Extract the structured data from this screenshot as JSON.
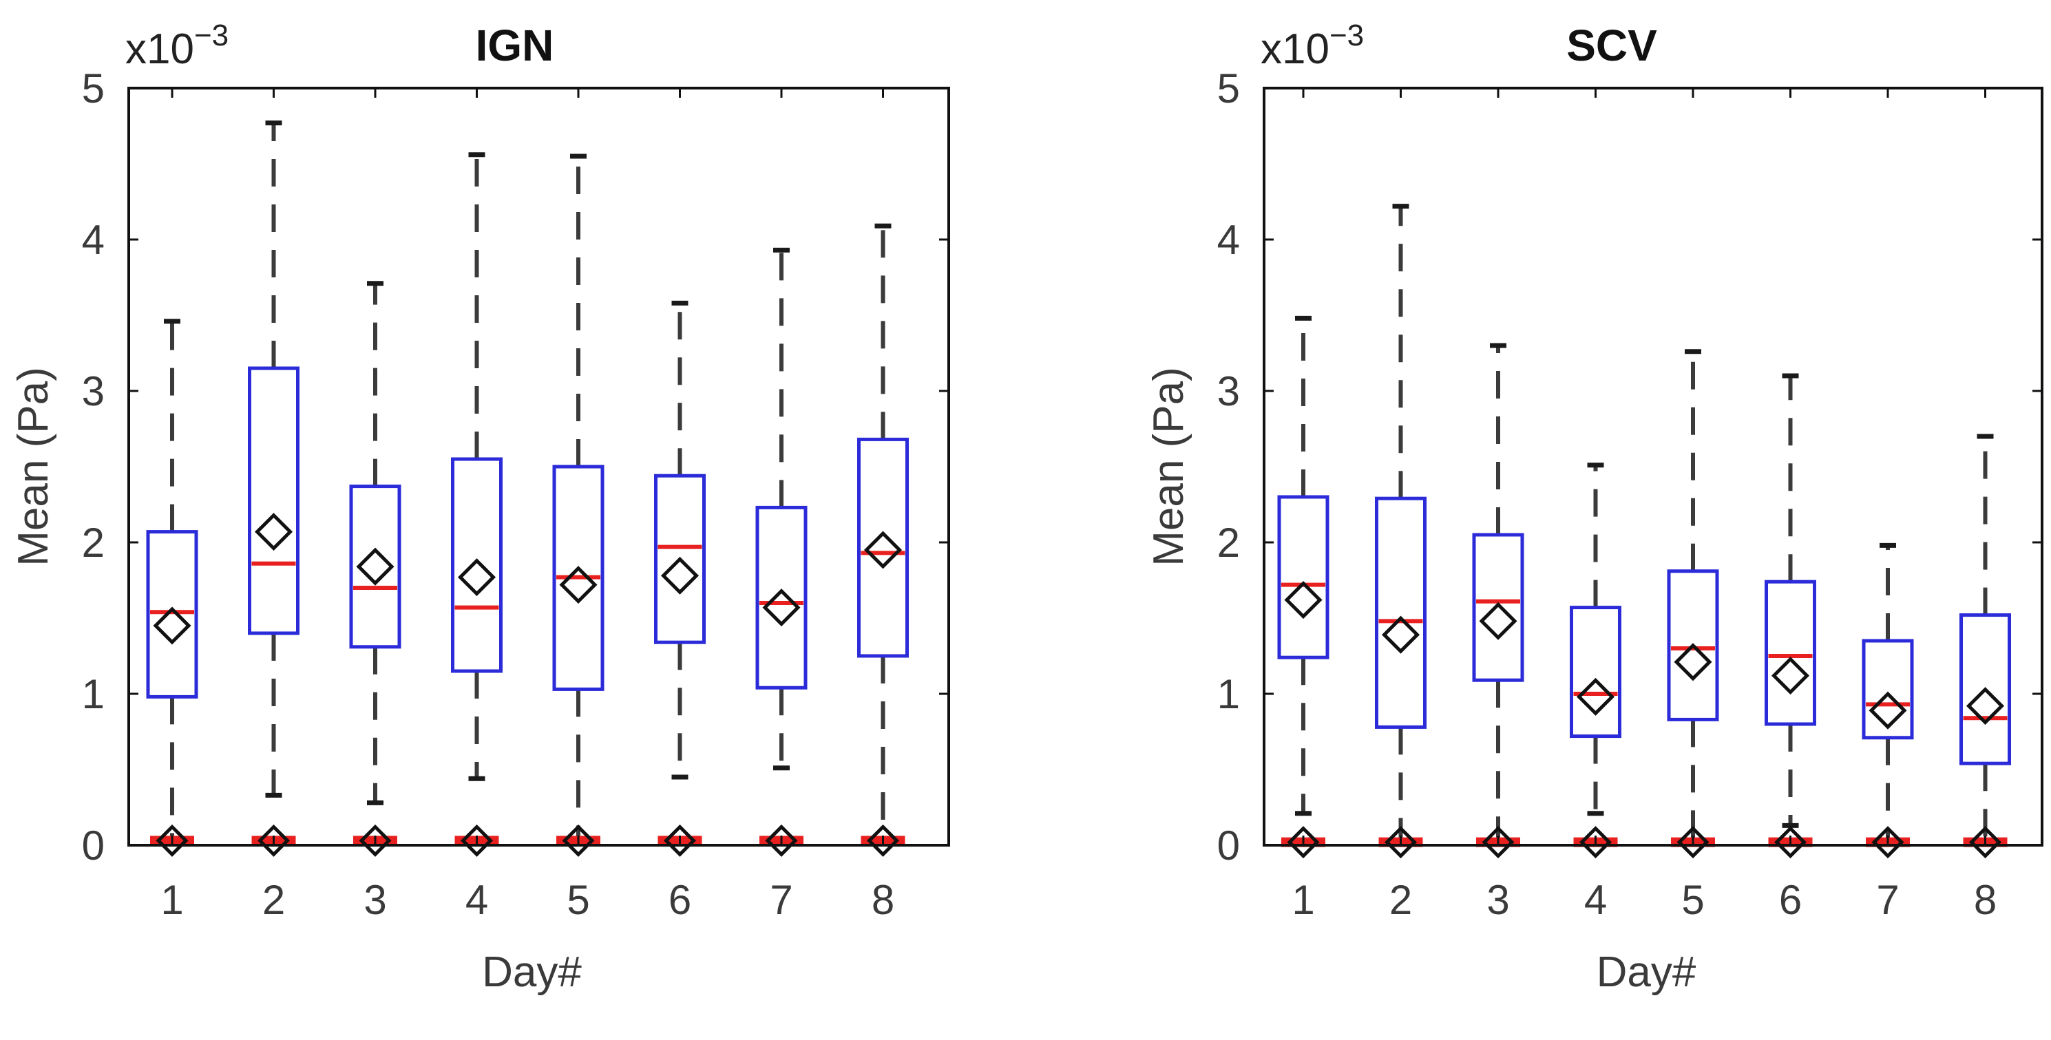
{
  "chart_data": [
    {
      "type": "boxplot",
      "title": "IGN",
      "xlabel": "Day#",
      "ylabel": "Mean (Pa)",
      "scale_label": "x10",
      "scale_exponent": "−3",
      "ylim": [
        0,
        5
      ],
      "yticks": [
        "0",
        "1",
        "2",
        "3",
        "4",
        "5"
      ],
      "categories": [
        "1",
        "2",
        "3",
        "4",
        "5",
        "6",
        "7",
        "8"
      ],
      "boxes": [
        {
          "whisker_low": 0.03,
          "q1": 0.98,
          "median": 1.54,
          "q3": 2.07,
          "whisker_high": 3.46,
          "mean": 1.45,
          "outlier": 0.03
        },
        {
          "whisker_low": 0.33,
          "q1": 1.4,
          "median": 1.86,
          "q3": 3.15,
          "whisker_high": 4.77,
          "mean": 2.07,
          "outlier": 0.03
        },
        {
          "whisker_low": 0.28,
          "q1": 1.31,
          "median": 1.7,
          "q3": 2.37,
          "whisker_high": 3.71,
          "mean": 1.84,
          "outlier": 0.03
        },
        {
          "whisker_low": 0.44,
          "q1": 1.15,
          "median": 1.57,
          "q3": 2.55,
          "whisker_high": 4.56,
          "mean": 1.77,
          "outlier": 0.03
        },
        {
          "whisker_low": 0.03,
          "q1": 1.03,
          "median": 1.77,
          "q3": 2.5,
          "whisker_high": 4.55,
          "mean": 1.72,
          "outlier": 0.03
        },
        {
          "whisker_low": 0.45,
          "q1": 1.34,
          "median": 1.97,
          "q3": 2.44,
          "whisker_high": 3.58,
          "mean": 1.78,
          "outlier": 0.03
        },
        {
          "whisker_low": 0.51,
          "q1": 1.04,
          "median": 1.6,
          "q3": 2.23,
          "whisker_high": 3.93,
          "mean": 1.57,
          "outlier": 0.03
        },
        {
          "whisker_low": 0.03,
          "q1": 1.25,
          "median": 1.93,
          "q3": 2.68,
          "whisker_high": 4.09,
          "mean": 1.95,
          "outlier": 0.03
        }
      ]
    },
    {
      "type": "boxplot",
      "title": "SCV",
      "xlabel": "Day#",
      "ylabel": "Mean (Pa)",
      "scale_label": "x10",
      "scale_exponent": "−3",
      "ylim": [
        0,
        5
      ],
      "yticks": [
        "0",
        "1",
        "2",
        "3",
        "4",
        "5"
      ],
      "categories": [
        "1",
        "2",
        "3",
        "4",
        "5",
        "6",
        "7",
        "8"
      ],
      "boxes": [
        {
          "whisker_low": 0.21,
          "q1": 1.24,
          "median": 1.72,
          "q3": 2.3,
          "whisker_high": 3.48,
          "mean": 1.62,
          "outlier": 0.02
        },
        {
          "whisker_low": 0.03,
          "q1": 0.78,
          "median": 1.48,
          "q3": 2.29,
          "whisker_high": 4.22,
          "mean": 1.39,
          "outlier": 0.02
        },
        {
          "whisker_low": 0.03,
          "q1": 1.09,
          "median": 1.61,
          "q3": 2.05,
          "whisker_high": 3.3,
          "mean": 1.48,
          "outlier": 0.02
        },
        {
          "whisker_low": 0.21,
          "q1": 0.72,
          "median": 1.0,
          "q3": 1.57,
          "whisker_high": 2.51,
          "mean": 0.98,
          "outlier": 0.02
        },
        {
          "whisker_low": 0.03,
          "q1": 0.83,
          "median": 1.3,
          "q3": 1.81,
          "whisker_high": 3.26,
          "mean": 1.21,
          "outlier": 0.02
        },
        {
          "whisker_low": 0.13,
          "q1": 0.8,
          "median": 1.25,
          "q3": 1.74,
          "whisker_high": 3.1,
          "mean": 1.12,
          "outlier": 0.02
        },
        {
          "whisker_low": 0.03,
          "q1": 0.71,
          "median": 0.93,
          "q3": 1.35,
          "whisker_high": 1.98,
          "mean": 0.89,
          "outlier": 0.02
        },
        {
          "whisker_low": 0.03,
          "q1": 0.54,
          "median": 0.84,
          "q3": 1.52,
          "whisker_high": 2.7,
          "mean": 0.92,
          "outlier": 0.02
        }
      ]
    }
  ],
  "colors": {
    "box": "#2b2bd9",
    "median": "#e8201f",
    "whisker": "#1a1a1a",
    "mean_marker": "#111111",
    "outlier": "#e8201f",
    "axes": "#111111"
  }
}
